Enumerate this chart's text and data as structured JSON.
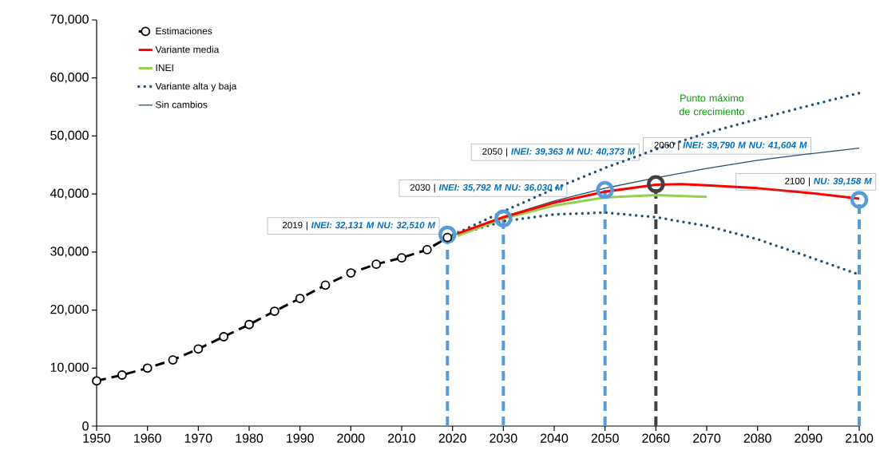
{
  "chart_data": {
    "type": "line",
    "xlim": [
      1950,
      2100
    ],
    "xticks": [
      1950,
      1960,
      1970,
      1980,
      1990,
      2000,
      2010,
      2020,
      2030,
      2040,
      2050,
      2060,
      2070,
      2080,
      2090,
      2100
    ],
    "ylim": [
      0,
      70000
    ],
    "yticks": [
      {
        "value": 0,
        "label": "0"
      },
      {
        "value": 10000,
        "label": "10,000"
      },
      {
        "value": 20000,
        "label": "20,000"
      },
      {
        "value": 30000,
        "label": "30,000"
      },
      {
        "value": 40000,
        "label": "40,000"
      },
      {
        "value": 50000,
        "label": "50,000"
      },
      {
        "value": 60000,
        "label": "60,000"
      },
      {
        "value": 70000,
        "label": "70,000"
      }
    ],
    "grid": false,
    "legend": "top left",
    "series": [
      {
        "name": "Estimaciones",
        "color": "#000000",
        "line_style": "dashed",
        "marker": "circle",
        "x": [
          1950,
          1955,
          1960,
          1965,
          1970,
          1975,
          1980,
          1985,
          1990,
          1995,
          2000,
          2005,
          2010,
          2015,
          2019
        ],
        "values": [
          7800,
          8800,
          10000,
          11400,
          13300,
          15400,
          17500,
          19800,
          22000,
          24300,
          26400,
          27900,
          29000,
          30400,
          32500
        ]
      },
      {
        "name": "Variante media",
        "color": "#ff0000",
        "line_style": "solid",
        "x": [
          2021,
          2030,
          2040,
          2050,
          2060,
          2065,
          2070,
          2080,
          2090,
          2100
        ],
        "values": [
          33200,
          36000,
          38500,
          40400,
          41600,
          41700,
          41500,
          41000,
          40200,
          39200
        ]
      },
      {
        "name": "INEI",
        "color": "#92d050",
        "line_style": "solid",
        "x": [
          2021,
          2030,
          2040,
          2050,
          2060,
          2070
        ],
        "values": [
          32800,
          35800,
          38000,
          39400,
          39800,
          39500
        ]
      },
      {
        "name": "Variante alta y baja",
        "color": "#1f4e79",
        "line_style": "dotted",
        "x": [
          2019,
          2030,
          2040,
          2050,
          2060,
          2070,
          2080,
          2090,
          2100
        ],
        "values": [
          32500,
          37000,
          40900,
          44500,
          47700,
          50500,
          52900,
          55200,
          57400
        ]
      },
      {
        "color": "#1f4e79",
        "line_style": "dotted",
        "x": [
          2019,
          2030,
          2040,
          2050,
          2060,
          2070,
          2080,
          2090,
          2100
        ],
        "values": [
          32500,
          35300,
          36500,
          36800,
          36000,
          34500,
          32200,
          29200,
          26100
        ]
      },
      {
        "name": "Sin cambios",
        "color": "#1f4e79",
        "line_style": "solid",
        "x": [
          2019,
          2030,
          2040,
          2050,
          2060,
          2070,
          2080,
          2090,
          2100
        ],
        "values": [
          32500,
          36100,
          38800,
          41000,
          42800,
          44400,
          45800,
          46900,
          47900
        ]
      },
      {
        "type": "lollipop",
        "line_style": "dashed",
        "marker": "circle",
        "x": [
          2019,
          2030,
          2050,
          2060,
          2100
        ],
        "values": [
          33000,
          35800,
          40700,
          41700,
          39000
        ],
        "colors": [
          "#5b9bd5",
          "#5b9bd5",
          "#5b9bd5",
          "#404040",
          "#5b9bd5"
        ]
      }
    ],
    "annotations": [
      "2019 | **INEI: 32,131 M** **NU: 32,510 M**",
      "2030 | **INEI: 35,792 M** **NU: 36,030 M**",
      "2050 | **INEI: 39,363 M** **NU: 40,373 M**",
      "2060 | **INEI: 39,790 M** **NU: 41,604 M**",
      "2100 | **NU: 39,158 M**",
      "Punto máximo de crecimiento"
    ]
  }
}
